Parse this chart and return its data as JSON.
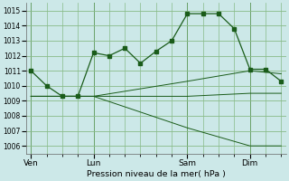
{
  "xlabel": "Pression niveau de la mer( hPa )",
  "background_color": "#cce8e8",
  "grid_color": "#88bb88",
  "line_color": "#1a5c1a",
  "yticks": [
    1006,
    1007,
    1008,
    1009,
    1010,
    1011,
    1012,
    1013,
    1014,
    1015
  ],
  "ylim": [
    1005.5,
    1015.5
  ],
  "xtick_labels": [
    "Ven",
    "Lun",
    "Sam",
    "Dim"
  ],
  "xtick_positions": [
    0,
    4,
    10,
    14
  ],
  "total_points": 17,
  "series": [
    {
      "x": [
        0,
        1,
        2,
        3,
        4,
        5,
        6,
        7,
        8,
        9,
        10,
        11,
        12,
        13,
        14,
        15,
        16
      ],
      "y": [
        1011.0,
        1010.0,
        1009.3,
        1009.3,
        1012.2,
        1012.0,
        1012.5,
        1011.5,
        1012.3,
        1013.0,
        1014.8,
        1014.8,
        1014.8,
        1013.8,
        1011.1,
        1011.1,
        1010.3
      ],
      "markers": true
    },
    {
      "x": [
        0,
        4,
        10,
        14,
        16
      ],
      "y": [
        1009.3,
        1009.3,
        1009.3,
        1009.5,
        1009.5
      ],
      "markers": false
    },
    {
      "x": [
        0,
        4,
        10,
        14,
        16
      ],
      "y": [
        1009.3,
        1009.3,
        1010.3,
        1011.0,
        1010.8
      ],
      "markers": false
    },
    {
      "x": [
        0,
        4,
        10,
        14,
        16
      ],
      "y": [
        1009.3,
        1009.3,
        1007.2,
        1006.0,
        1006.0
      ],
      "markers": false
    }
  ],
  "vline_positions": [
    0,
    4,
    10,
    14
  ],
  "xlim": [
    -0.3,
    16.3
  ]
}
